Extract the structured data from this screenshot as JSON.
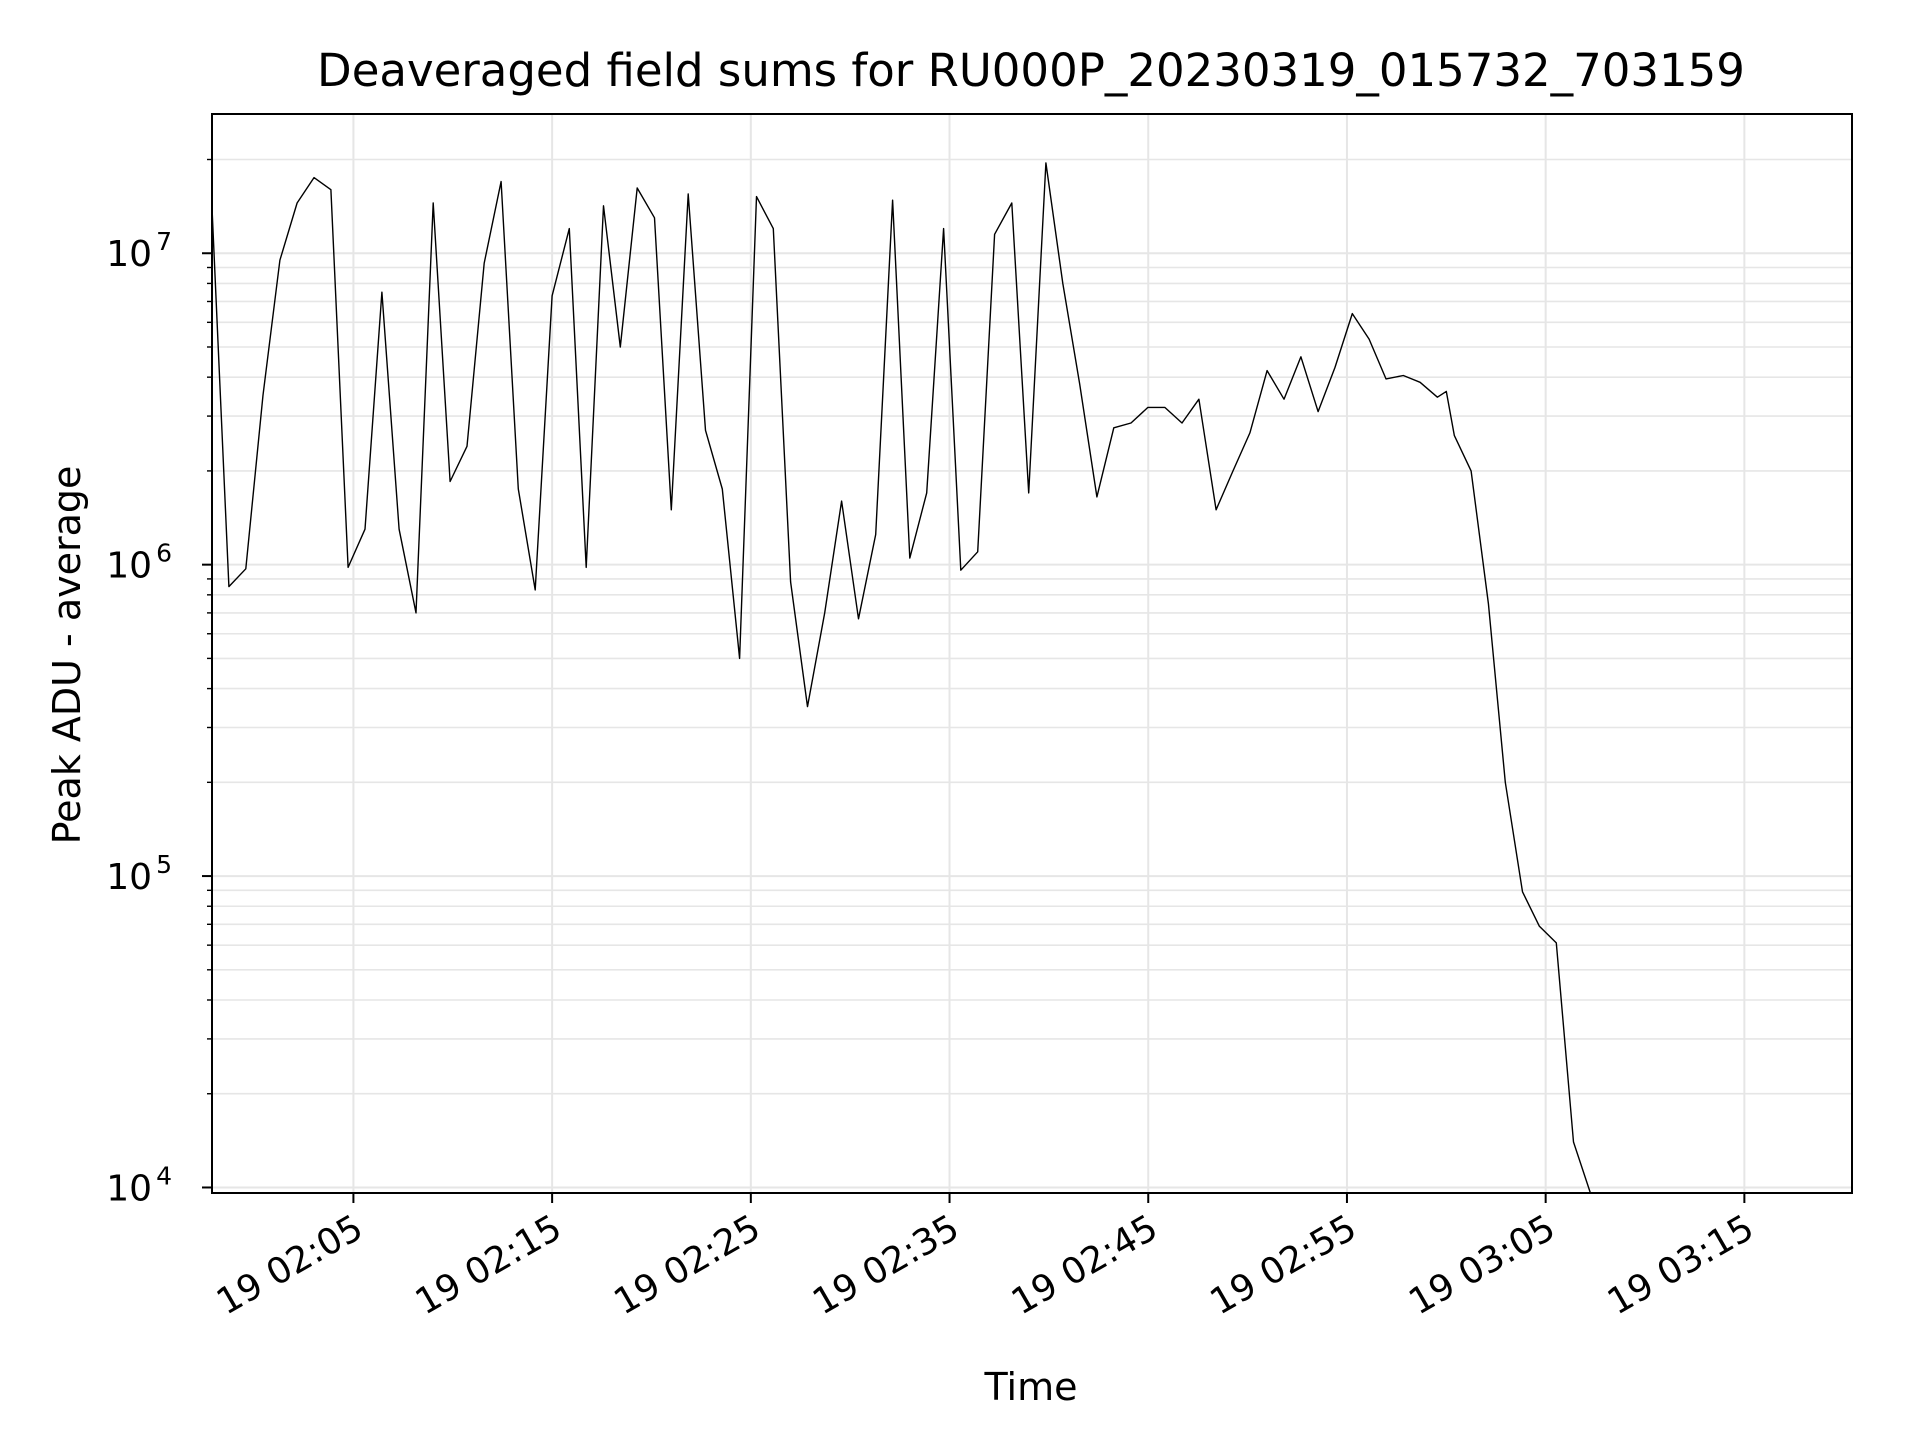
{
  "chart_data": {
    "type": "line",
    "title": "Deaveraged field sums for RU000P_20230319_015732_703159",
    "xlabel": "Time",
    "ylabel": "Peak ADU - average",
    "yscale": "log",
    "ylim": [
      9600,
      28000000
    ],
    "xlim": [
      "2023-03-19 01:57:53",
      "2023-03-19 03:20:25"
    ],
    "grid": true,
    "line_color": "#000000",
    "x_ticks": [
      {
        "value": "2023-03-19 02:05",
        "label": "19 02:05"
      },
      {
        "value": "2023-03-19 02:15",
        "label": "19 02:15"
      },
      {
        "value": "2023-03-19 02:25",
        "label": "19 02:25"
      },
      {
        "value": "2023-03-19 02:35",
        "label": "19 02:35"
      },
      {
        "value": "2023-03-19 02:45",
        "label": "19 02:45"
      },
      {
        "value": "2023-03-19 02:55",
        "label": "19 02:55"
      },
      {
        "value": "2023-03-19 03:05",
        "label": "19 03:05"
      },
      {
        "value": "2023-03-19 03:15",
        "label": "19 03:15"
      }
    ],
    "y_ticks": [
      {
        "value": 10000,
        "base": "10",
        "exp": "4"
      },
      {
        "value": 100000,
        "base": "10",
        "exp": "5"
      },
      {
        "value": 1000000,
        "base": "10",
        "exp": "6"
      },
      {
        "value": 10000000,
        "base": "10",
        "exp": "7"
      }
    ],
    "x": [
      "2023-03-19 01:57:53",
      "2023-03-19 01:58:44",
      "2023-03-19 01:59:35",
      "2023-03-19 02:00:27",
      "2023-03-19 02:01:18",
      "2023-03-19 02:02:10",
      "2023-03-19 02:03:01",
      "2023-03-19 02:03:52",
      "2023-03-19 02:04:44",
      "2023-03-19 02:05:35",
      "2023-03-19 02:06:26",
      "2023-03-19 02:07:18",
      "2023-03-19 02:08:09",
      "2023-03-19 02:09:01",
      "2023-03-19 02:09:52",
      "2023-03-19 02:10:43",
      "2023-03-19 02:11:35",
      "2023-03-19 02:12:26",
      "2023-03-19 02:13:18",
      "2023-03-19 02:14:09",
      "2023-03-19 02:15:00",
      "2023-03-19 02:15:52",
      "2023-03-19 02:16:43",
      "2023-03-19 02:17:35",
      "2023-03-19 02:18:26",
      "2023-03-19 02:19:17",
      "2023-03-19 02:20:09",
      "2023-03-19 02:21:00",
      "2023-03-19 02:21:51",
      "2023-03-19 02:22:43",
      "2023-03-19 02:23:34",
      "2023-03-19 02:24:26",
      "2023-03-19 02:25:17",
      "2023-03-19 02:26:08",
      "2023-03-19 02:27:00",
      "2023-03-19 02:27:51",
      "2023-03-19 02:28:43",
      "2023-03-19 02:29:34",
      "2023-03-19 02:30:25",
      "2023-03-19 02:31:17",
      "2023-03-19 02:32:08",
      "2023-03-19 02:33:00",
      "2023-03-19 02:33:51",
      "2023-03-19 02:34:42",
      "2023-03-19 02:35:34",
      "2023-03-19 02:36:25",
      "2023-03-19 02:37:16",
      "2023-03-19 02:38:08",
      "2023-03-19 02:38:59",
      "2023-03-19 02:39:51",
      "2023-03-19 02:40:42",
      "2023-03-19 02:41:33",
      "2023-03-19 02:42:25",
      "2023-03-19 02:43:16",
      "2023-03-19 02:44:08",
      "2023-03-19 02:44:59",
      "2023-03-19 02:45:50",
      "2023-03-19 02:46:42",
      "2023-03-19 02:47:33",
      "2023-03-19 02:48:25",
      "2023-03-19 02:49:16",
      "2023-03-19 02:50:07",
      "2023-03-19 02:50:59",
      "2023-03-19 02:51:50",
      "2023-03-19 02:52:41",
      "2023-03-19 02:53:33",
      "2023-03-19 02:54:24",
      "2023-03-19 02:55:16",
      "2023-03-19 02:56:07",
      "2023-03-19 02:56:58",
      "2023-03-19 02:57:50",
      "2023-03-19 02:58:41",
      "2023-03-19 02:59:33",
      "2023-03-19 03:00:00",
      "2023-03-19 03:00:24",
      "2023-03-19 03:01:15",
      "2023-03-19 03:02:07",
      "2023-03-19 03:02:58",
      "2023-03-19 03:03:50",
      "2023-03-19 03:04:41",
      "2023-03-19 03:05:32",
      "2023-03-19 03:06:24",
      "2023-03-19 03:07:15",
      "2023-03-19 03:07:15"
    ],
    "series": [
      {
        "values": [
          14000000,
          850000,
          970000,
          3500000,
          9500000,
          14500000,
          17500000,
          16000000,
          980000,
          1300000,
          7500000,
          1300000,
          700000,
          14500000,
          1850000,
          2400000,
          9300000,
          17000000,
          1750000,
          830000,
          7300000,
          12000000,
          980000,
          14200000,
          5000000,
          16200000,
          13000000,
          1500000,
          15500000,
          2700000,
          1750000,
          500000,
          15200000,
          12000000,
          880000,
          350000,
          700000,
          1600000,
          670000,
          1250000,
          14800000,
          1050000,
          1700000,
          12000000,
          960000,
          1100000,
          11500000,
          14500000,
          1700000,
          19500000,
          8000000,
          3800000,
          1650000,
          2750000,
          2850000,
          3200000,
          3200000,
          2850000,
          3400000,
          1500000,
          2000000,
          2650000,
          4200000,
          3400000,
          4650000,
          3100000,
          4300000,
          6400000,
          5300000,
          3950000,
          4050000,
          3850000,
          3450000,
          3600000,
          2600000,
          2000000,
          750000,
          200000,
          89000,
          69000,
          61000,
          14000,
          9600,
          9600
        ]
      }
    ]
  }
}
